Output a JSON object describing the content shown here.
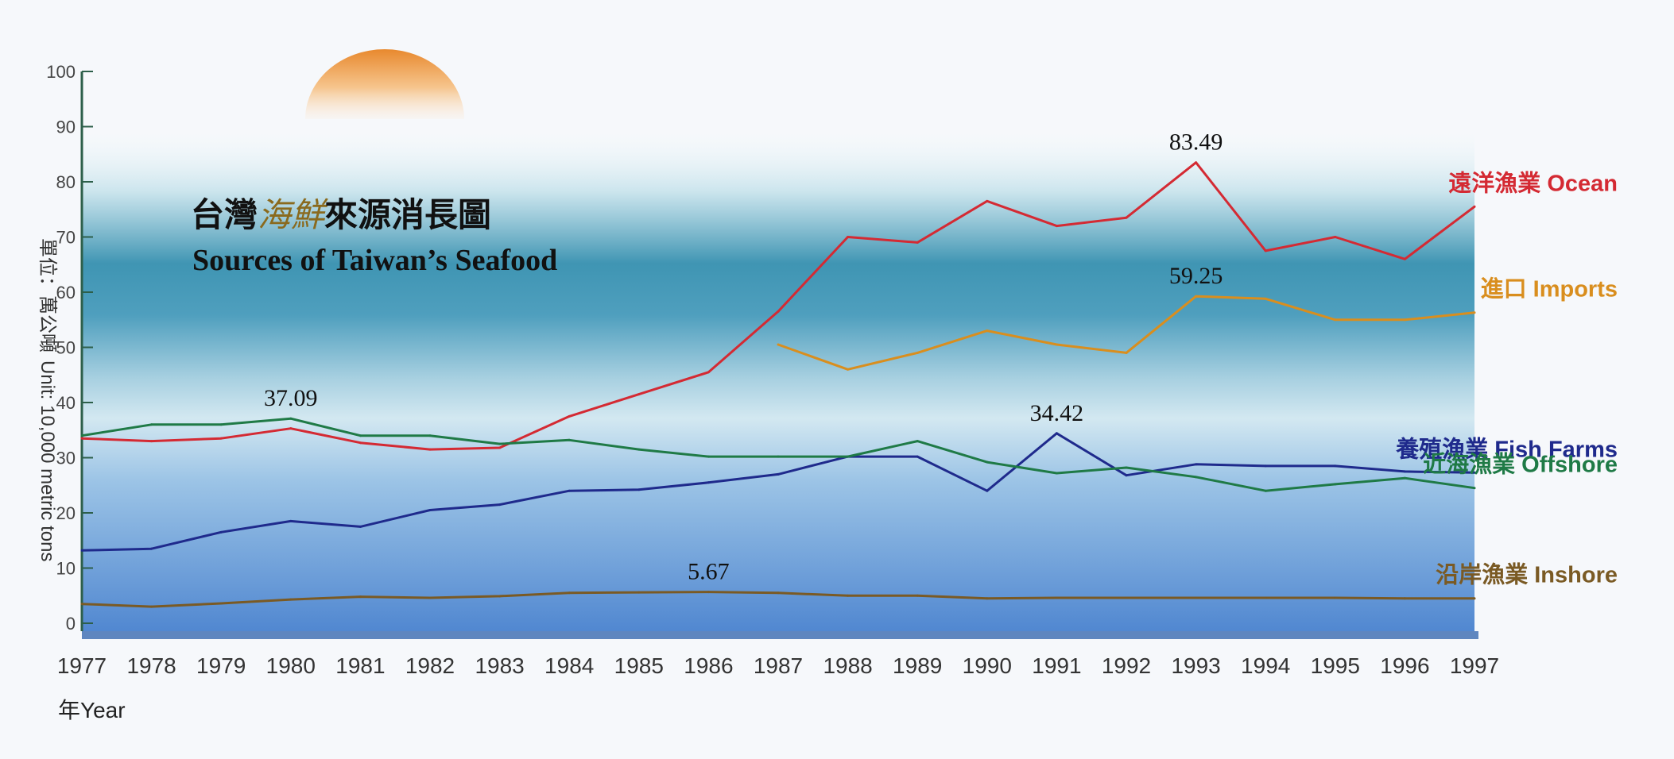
{
  "chart_data": {
    "type": "line",
    "title_zh_parts": [
      "台灣",
      "海",
      "鮮",
      "來源消長圖"
    ],
    "title_en": "Sources of Taiwan’s Seafood",
    "ylabel_zh": "單位：萬公噸",
    "ylabel_en": "Unit: 10,000 metric tons",
    "xlabel": "年Year",
    "ylim": [
      0,
      100
    ],
    "yticks": [
      "0",
      "10",
      "20",
      "30",
      "40",
      "50",
      "60",
      "70",
      "80",
      "90",
      "100"
    ],
    "x": [
      "1977",
      "1978",
      "1979",
      "1980",
      "1981",
      "1982",
      "1983",
      "1984",
      "1985",
      "1986",
      "1987",
      "1988",
      "1989",
      "1990",
      "1991",
      "1992",
      "1993",
      "1994",
      "1995",
      "1996",
      "1997"
    ],
    "series": [
      {
        "name": "遠洋漁業 Ocean",
        "color": "#d42a33",
        "values": [
          33.5,
          33.0,
          33.5,
          35.3,
          32.7,
          31.5,
          31.8,
          37.5,
          41.5,
          45.5,
          56.5,
          70.0,
          69.0,
          76.5,
          72.0,
          73.5,
          83.49,
          67.5,
          70.0,
          66.0,
          75.5
        ]
      },
      {
        "name": "進口 Imports",
        "color": "#d98e1e",
        "values": [
          null,
          null,
          null,
          null,
          null,
          null,
          null,
          null,
          null,
          null,
          50.5,
          46.0,
          49.0,
          53.0,
          50.5,
          49.0,
          59.25,
          58.8,
          55.0,
          55.0,
          56.3
        ]
      },
      {
        "name": "養殖漁業 Fish Farms",
        "color": "#1f2a8c",
        "values": [
          13.2,
          13.5,
          16.5,
          18.5,
          17.5,
          20.5,
          21.5,
          24.0,
          24.2,
          25.5,
          27.0,
          30.2,
          30.2,
          24.0,
          34.42,
          26.8,
          28.8,
          28.5,
          28.5,
          27.5,
          27.3
        ]
      },
      {
        "name": "近海漁業 Offshore",
        "color": "#1f7a46",
        "values": [
          34.0,
          36.0,
          36.0,
          37.09,
          34.0,
          34.0,
          32.5,
          33.2,
          31.5,
          30.2,
          30.2,
          30.2,
          33.0,
          29.2,
          27.2,
          28.2,
          26.5,
          24.0,
          25.2,
          26.3,
          24.5
        ]
      },
      {
        "name": "沿岸漁業 Inshore",
        "color": "#7a5a24",
        "values": [
          3.5,
          3.0,
          3.6,
          4.3,
          4.8,
          4.6,
          4.9,
          5.5,
          5.6,
          5.67,
          5.5,
          5.0,
          5.0,
          4.5,
          4.6,
          4.6,
          4.6,
          4.6,
          4.6,
          4.5,
          4.5
        ]
      }
    ],
    "annotations": [
      {
        "text": "37.09",
        "series": 3,
        "index": 3
      },
      {
        "text": "83.49",
        "series": 0,
        "index": 16
      },
      {
        "text": "59.25",
        "series": 1,
        "index": 16
      },
      {
        "text": "34.42",
        "series": 2,
        "index": 14
      },
      {
        "text": "5.67",
        "series": 4,
        "index": 9
      }
    ]
  }
}
